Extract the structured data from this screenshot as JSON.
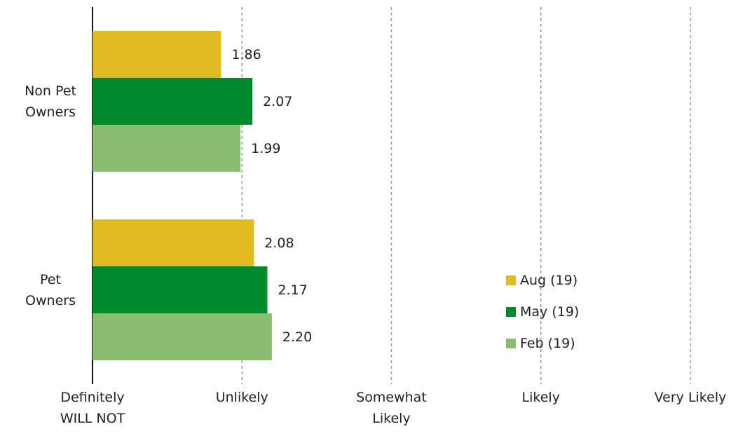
{
  "chart_data": {
    "type": "bar",
    "orientation": "horizontal",
    "categories": [
      "Non Pet\nOwners",
      "Pet\nOwners"
    ],
    "series": [
      {
        "name": "Aug (19)",
        "color": "#e0bc22",
        "values": [
          1.86,
          2.08
        ]
      },
      {
        "name": "May (19)",
        "color": "#00892d",
        "values": [
          2.07,
          2.17
        ]
      },
      {
        "name": "Feb (19)",
        "color": "#8abd72",
        "values": [
          1.99,
          2.2
        ],
        "value_labels": [
          "1.99",
          "2.20"
        ]
      }
    ],
    "xlim": [
      1,
      5
    ],
    "xticks": [
      {
        "value": 1,
        "label": "Definitely\nWILL NOT"
      },
      {
        "value": 2,
        "label": "Unlikely"
      },
      {
        "value": 3,
        "label": "Somewhat\nLikely"
      },
      {
        "value": 4,
        "label": "Likely"
      },
      {
        "value": 5,
        "label": "Very Likely"
      }
    ],
    "grid": true,
    "legend": "lower right"
  }
}
